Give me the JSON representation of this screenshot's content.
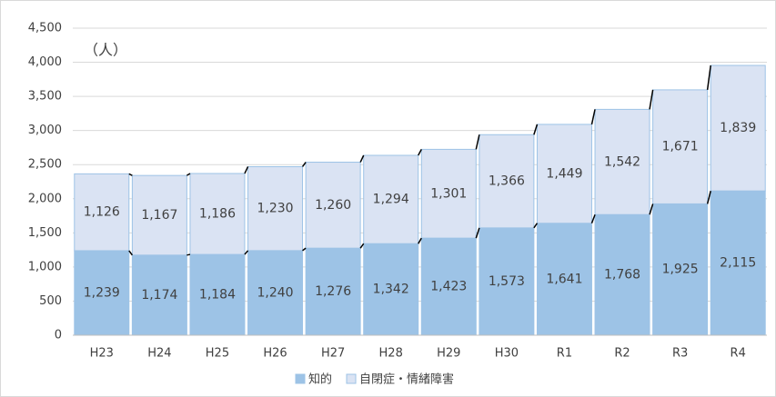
{
  "chart_data": {
    "type": "stacked_bar",
    "annotation": "（人）",
    "categories": [
      "H23",
      "H24",
      "H25",
      "H26",
      "H27",
      "H28",
      "H29",
      "H30",
      "R1",
      "R2",
      "R3",
      "R4"
    ],
    "series": [
      {
        "name": "知的",
        "color": "#9dc3e6",
        "values": [
          1239,
          1174,
          1184,
          1240,
          1276,
          1342,
          1423,
          1573,
          1641,
          1768,
          1925,
          2115
        ],
        "value_labels": [
          "1,239",
          "1,174",
          "1,184",
          "1,240",
          "1,276",
          "1,342",
          "1,423",
          "1,573",
          "1,641",
          "1,768",
          "1,925",
          "2,115"
        ]
      },
      {
        "name": "自閉症・情緒障害",
        "color": "#dae3f3",
        "values": [
          1126,
          1167,
          1186,
          1230,
          1260,
          1294,
          1301,
          1366,
          1449,
          1542,
          1671,
          1839
        ],
        "value_labels": [
          "1,126",
          "1,167",
          "1,186",
          "1,230",
          "1,260",
          "1,294",
          "1,301",
          "1,366",
          "1,449",
          "1,542",
          "1,671",
          "1,839"
        ]
      }
    ],
    "ylim": [
      0,
      4500
    ],
    "yticks": [
      0,
      {
        "value": 500,
        "label": "500"
      },
      {
        "value": 1000,
        "label": "1,000"
      },
      {
        "value": 1500,
        "label": "1,500"
      },
      {
        "value": 2000,
        "label": "2,000"
      },
      {
        "value": 2500,
        "label": "2,500"
      },
      {
        "value": 3000,
        "label": "3,000"
      },
      {
        "value": 3500,
        "label": "3,500"
      },
      {
        "value": 4000,
        "label": "4,000"
      },
      {
        "value": 4500,
        "label": "4,500"
      }
    ],
    "grid": true,
    "series_lines": true,
    "legend": "bottom"
  }
}
